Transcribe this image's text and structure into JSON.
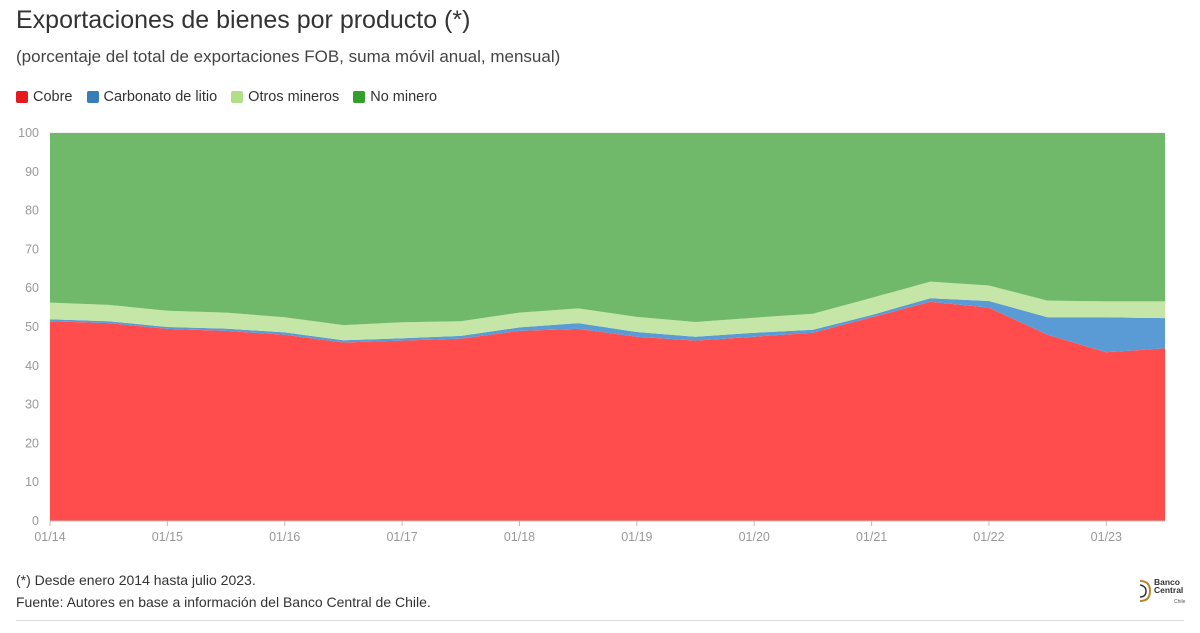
{
  "header": {
    "title": "Exportaciones de bienes por producto (*)",
    "subtitle": "(porcentaje del total de exportaciones FOB, suma móvil anual, mensual)"
  },
  "legend": [
    {
      "label": "Cobre",
      "color": "#e41a1c"
    },
    {
      "label": "Carbonato de litio",
      "color": "#377eb8"
    },
    {
      "label": "Otros mineros",
      "color": "#b2df8a"
    },
    {
      "label": "No minero",
      "color": "#33a02c"
    }
  ],
  "notes": {
    "note1": "(*) Desde enero 2014 hasta julio 2023.",
    "note2": "Fuente: Autores en base a información del Banco Central de Chile."
  },
  "logo": {
    "line1": "Banco",
    "line2": "Central",
    "line3": "Chile"
  },
  "chart_data": {
    "type": "area",
    "stacked": true,
    "x": [
      "01/14",
      "07/14",
      "01/15",
      "07/15",
      "01/16",
      "07/16",
      "01/17",
      "07/17",
      "01/18",
      "07/18",
      "01/19",
      "07/19",
      "01/20",
      "07/20",
      "01/21",
      "07/21",
      "01/22",
      "07/22",
      "01/23",
      "07/23"
    ],
    "series": [
      {
        "name": "Cobre",
        "color": "#ff4d4d",
        "values": [
          51.5,
          51.0,
          49.5,
          49.0,
          48.0,
          46.0,
          46.5,
          47.0,
          49.0,
          49.5,
          47.5,
          46.5,
          47.5,
          48.5,
          52.5,
          56.5,
          55.0,
          48.0,
          43.5,
          44.5
        ]
      },
      {
        "name": "Carbonato de litio",
        "color": "#5b9bd5",
        "values": [
          0.5,
          0.5,
          0.5,
          0.6,
          0.6,
          0.6,
          0.6,
          0.7,
          0.9,
          1.5,
          1.2,
          1.0,
          1.0,
          0.8,
          0.6,
          0.9,
          1.7,
          4.5,
          9.0,
          7.8
        ]
      },
      {
        "name": "Otros mineros",
        "color": "#c5e6a6",
        "values": [
          4.3,
          4.2,
          4.2,
          4.1,
          3.9,
          3.9,
          4.1,
          3.8,
          3.8,
          3.8,
          3.9,
          3.8,
          3.9,
          4.1,
          4.4,
          4.3,
          4.0,
          4.3,
          4.1,
          4.3
        ]
      },
      {
        "name": "No minero",
        "color": "#70b96a",
        "values": [
          43.7,
          44.3,
          45.8,
          46.3,
          47.5,
          49.5,
          48.8,
          48.5,
          46.3,
          45.2,
          47.4,
          48.7,
          47.6,
          46.6,
          42.5,
          38.3,
          39.3,
          43.2,
          43.4,
          43.4
        ]
      }
    ],
    "xticks": [
      "01/14",
      "01/15",
      "01/16",
      "01/17",
      "01/18",
      "01/19",
      "01/20",
      "01/21",
      "01/22",
      "01/23"
    ],
    "yticks": [
      0,
      10,
      20,
      30,
      40,
      50,
      60,
      70,
      80,
      90,
      100
    ],
    "ylim": [
      0,
      100
    ],
    "grid": true,
    "legend_position": "top-left"
  }
}
